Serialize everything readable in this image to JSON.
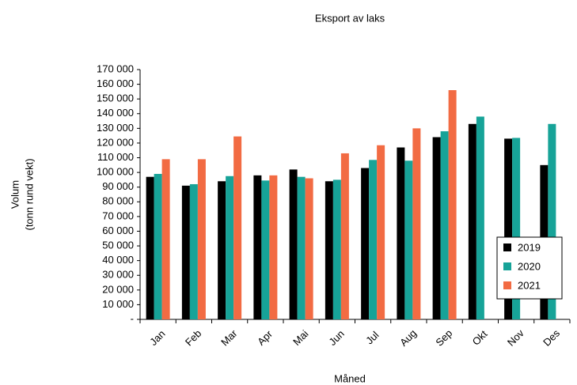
{
  "chart_data": {
    "type": "bar",
    "title": "Eksport av laks",
    "x_label": "Måned",
    "y_label": [
      "Volum",
      "(tonn rund vekt)"
    ],
    "categories": [
      "Jan",
      "Feb",
      "Mar",
      "Apr",
      "Mai",
      "Jun",
      "Jul",
      "Aug",
      "Sep",
      "Okt",
      "Nov",
      "Des"
    ],
    "series": [
      {
        "name": "2019",
        "color": "#000000",
        "values": [
          97000,
          91000,
          94000,
          98000,
          102000,
          94000,
          103000,
          117000,
          124000,
          133000,
          123000,
          105000
        ]
      },
      {
        "name": "2020",
        "color": "#17a398",
        "values": [
          99000,
          92000,
          97500,
          94500,
          97000,
          95000,
          108500,
          108000,
          128000,
          138000,
          123500,
          133000
        ]
      },
      {
        "name": "2021",
        "color": "#f26b43",
        "values": [
          109000,
          109000,
          124500,
          98000,
          96000,
          113000,
          118500,
          130000,
          156000,
          null,
          null,
          null
        ]
      }
    ],
    "ylim": [
      0,
      170000
    ],
    "yticks": [
      {
        "value": 0,
        "label": "-"
      },
      {
        "value": 10000,
        "label": "10 000"
      },
      {
        "value": 20000,
        "label": "20 000"
      },
      {
        "value": 30000,
        "label": "30 000"
      },
      {
        "value": 40000,
        "label": "40 000"
      },
      {
        "value": 50000,
        "label": "50 000"
      },
      {
        "value": 60000,
        "label": "60 000"
      },
      {
        "value": 70000,
        "label": "70 000"
      },
      {
        "value": 80000,
        "label": "80 000"
      },
      {
        "value": 90000,
        "label": "90 000"
      },
      {
        "value": 100000,
        "label": "100 000"
      },
      {
        "value": 110000,
        "label": "110 000"
      },
      {
        "value": 120000,
        "label": "120 000"
      },
      {
        "value": 130000,
        "label": "130 000"
      },
      {
        "value": 140000,
        "label": "140 000"
      },
      {
        "value": 150000,
        "label": "150 000"
      },
      {
        "value": 160000,
        "label": "160 000"
      },
      {
        "value": 170000,
        "label": "170 000"
      }
    ],
    "grid": false,
    "legend": "lower right"
  }
}
